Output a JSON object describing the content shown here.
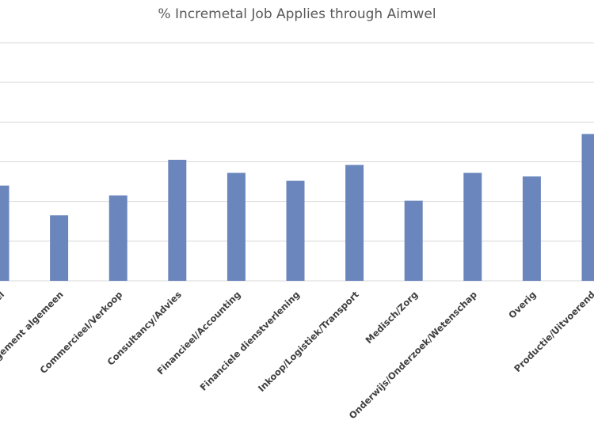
{
  "chart_data": {
    "type": "bar",
    "title": "% Incremetal Job Applies through Aimwel",
    "xlabel": "",
    "ylabel": "",
    "categories": [
      "Administratief/Secretarieel",
      "Management algemeen",
      "Commercieel/Verkoop",
      "Consultancy/Advies",
      "Financieel/Accounting",
      "Financiele dienstverlening",
      "Inkoop/Logistiek/Transport",
      "Medisch/Zorg",
      "Onderwijs/Onderzoek/Wetenschap",
      "Overig",
      "Productie/Uitvoerend"
    ],
    "values": [
      2.4,
      1.65,
      2.15,
      3.05,
      2.72,
      2.52,
      2.92,
      2.02,
      2.72,
      2.63,
      3.7
    ],
    "ylim": [
      0,
      6
    ],
    "gridlines": [
      0,
      1,
      2,
      3,
      4,
      5,
      6
    ],
    "grid": true,
    "legend": "none",
    "bar_color": "#6b86bc",
    "grid_color": "#d9d9d9"
  }
}
